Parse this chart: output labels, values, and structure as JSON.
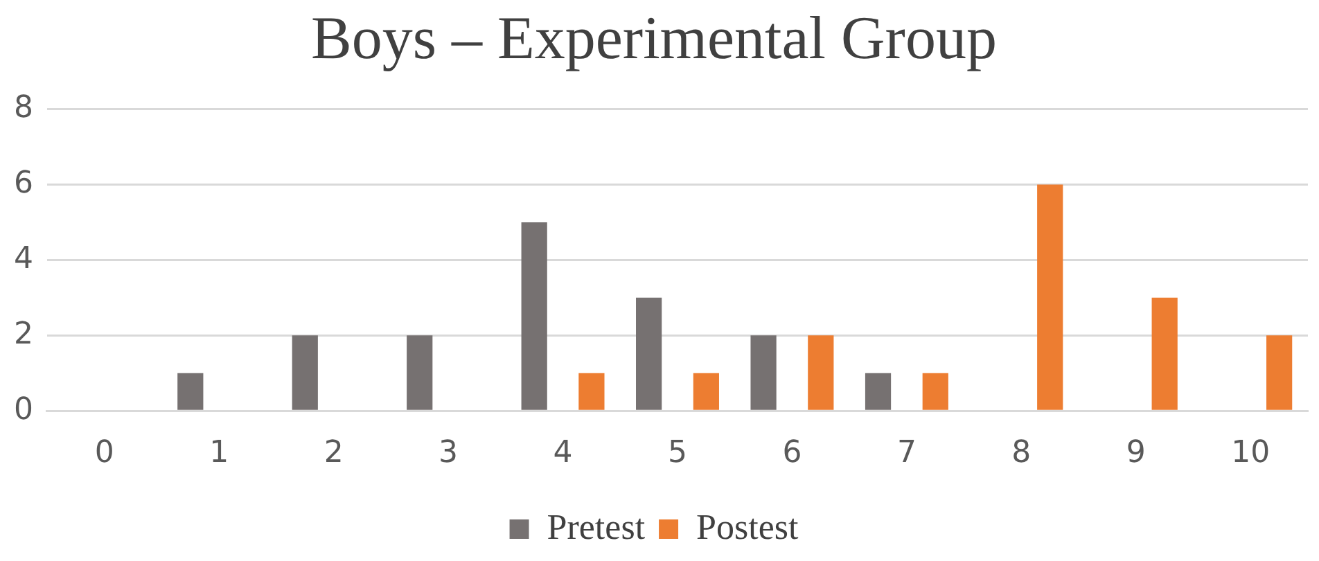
{
  "chart_data": {
    "type": "bar",
    "title": "Boys – Experimental Group",
    "categories": [
      "0",
      "1",
      "2",
      "3",
      "4",
      "5",
      "6",
      "7",
      "8",
      "9",
      "10"
    ],
    "series": [
      {
        "name": "Pretest",
        "color": "#767171",
        "values": [
          0,
          1,
          2,
          2,
          5,
          3,
          2,
          1,
          0,
          0,
          0
        ]
      },
      {
        "name": "Postest",
        "color": "#ed7d31",
        "values": [
          0,
          0,
          0,
          0,
          1,
          1,
          2,
          1,
          6,
          3,
          2
        ]
      }
    ],
    "ylim": [
      0,
      8
    ],
    "yticks": [
      0,
      2,
      4,
      6,
      8
    ],
    "grid": "y",
    "legend": "bottom"
  }
}
